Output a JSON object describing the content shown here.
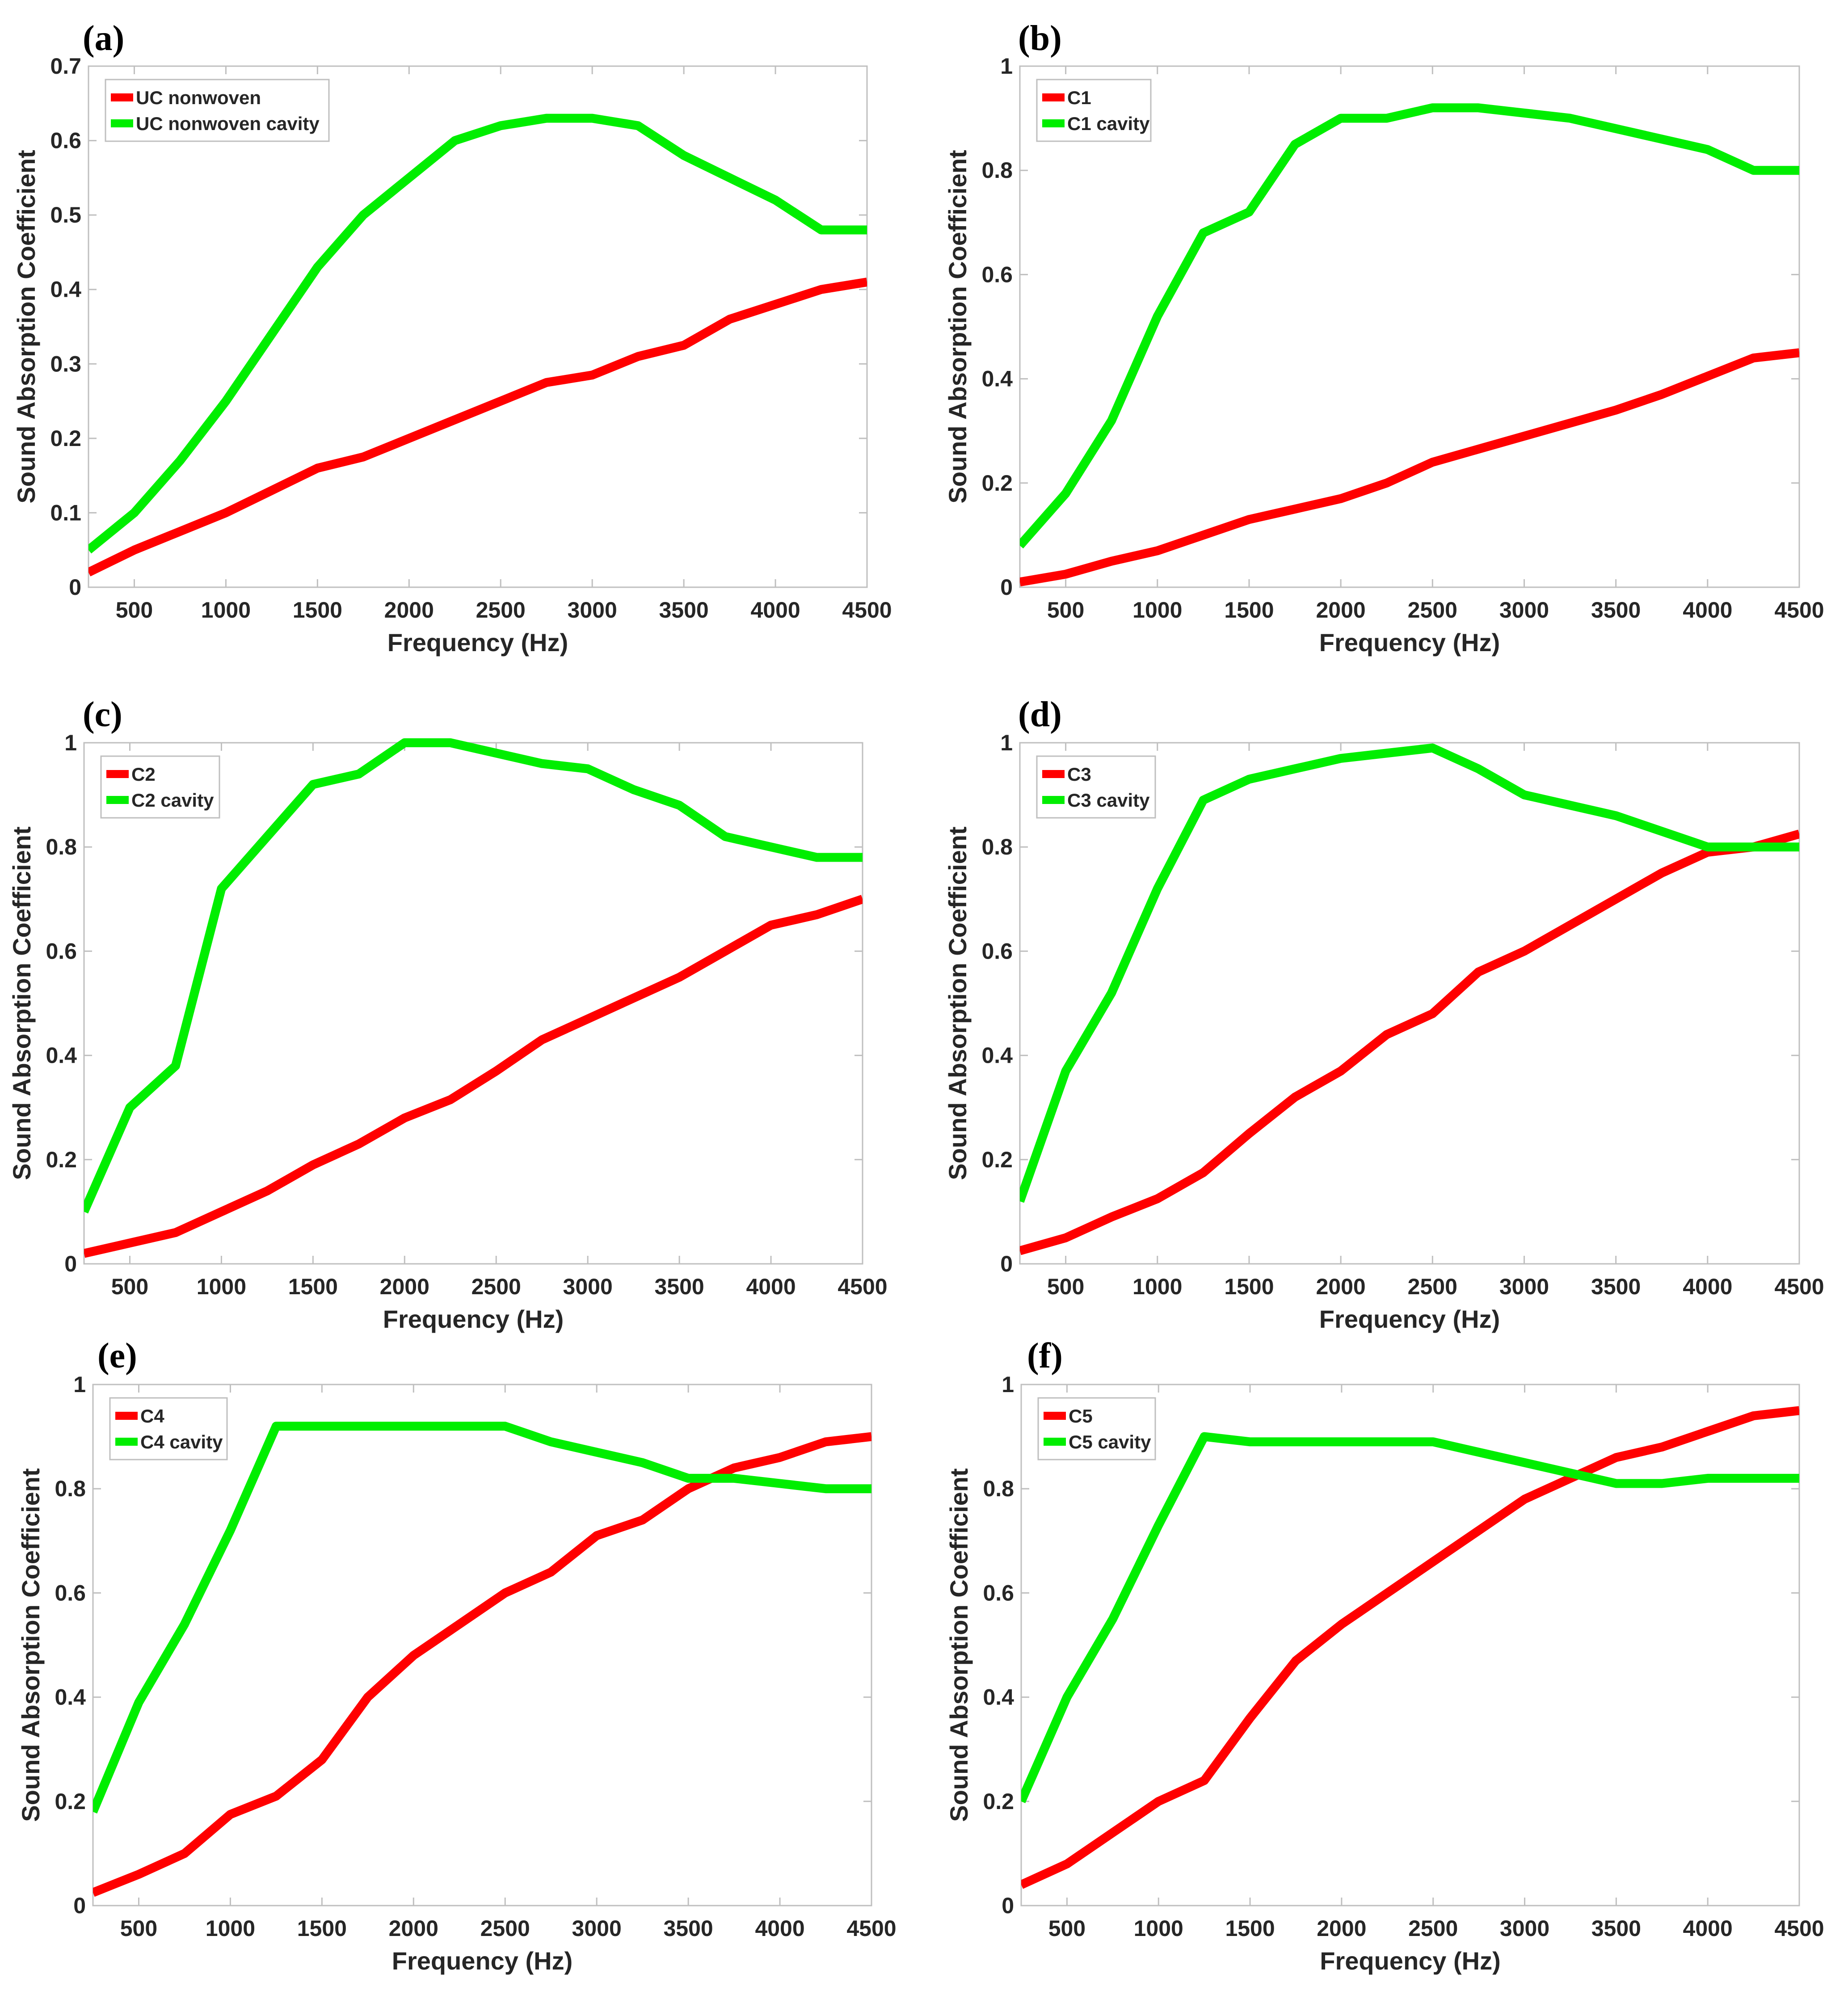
{
  "figure": {
    "colors": {
      "red": "#ff0000",
      "green": "#00ee00",
      "axis": "#bfbfbf",
      "text": "#262626"
    }
  },
  "chart_data": [
    {
      "panel": "(a)",
      "type": "line",
      "xlabel": "Frequency (Hz)",
      "ylabel": "Sound Absorption Coefficient",
      "xlim": [
        250,
        4500
      ],
      "ylim": [
        0,
        0.7
      ],
      "xticks": [
        500,
        1000,
        1500,
        2000,
        2500,
        3000,
        3500,
        4000,
        4500
      ],
      "yticks": [
        0,
        0.1,
        0.2,
        0.3,
        0.4,
        0.5,
        0.6,
        0.7
      ],
      "ytick_labels": [
        "0",
        "0.1",
        "0.2",
        "0.3",
        "0.4",
        "0.5",
        "0.6",
        "0.7"
      ],
      "legend_location": "top-left",
      "x": [
        250,
        500,
        750,
        1000,
        1250,
        1500,
        1750,
        2000,
        2250,
        2500,
        2750,
        3000,
        3250,
        3500,
        3750,
        4000,
        4250,
        4500
      ],
      "series": [
        {
          "name": "UC nonwoven",
          "color": "#ff0000",
          "values": [
            0.02,
            0.05,
            0.075,
            0.1,
            0.13,
            0.16,
            0.175,
            0.2,
            0.225,
            0.25,
            0.275,
            0.285,
            0.31,
            0.325,
            0.36,
            0.38,
            0.4,
            0.41
          ]
        },
        {
          "name": "UC nonwoven cavity",
          "color": "#00ee00",
          "values": [
            0.05,
            0.1,
            0.17,
            0.25,
            0.34,
            0.43,
            0.5,
            0.55,
            0.6,
            0.62,
            0.63,
            0.63,
            0.62,
            0.58,
            0.55,
            0.52,
            0.48,
            0.48
          ]
        }
      ]
    },
    {
      "panel": "(b)",
      "type": "line",
      "xlabel": "Frequency (Hz)",
      "ylabel": "Sound Absorption Coefficient",
      "xlim": [
        250,
        4500
      ],
      "ylim": [
        0,
        1
      ],
      "xticks": [
        500,
        1000,
        1500,
        2000,
        2500,
        3000,
        3500,
        4000,
        4500
      ],
      "yticks": [
        0,
        0.2,
        0.4,
        0.6,
        0.8,
        1
      ],
      "ytick_labels": [
        "0",
        "0.2",
        "0.4",
        "0.6",
        "0.8",
        "1"
      ],
      "legend_location": "top-left",
      "x": [
        250,
        500,
        750,
        1000,
        1250,
        1500,
        1750,
        2000,
        2250,
        2500,
        2750,
        3000,
        3250,
        3500,
        3750,
        4000,
        4250,
        4500
      ],
      "series": [
        {
          "name": "C1",
          "color": "#ff0000",
          "values": [
            0.01,
            0.025,
            0.05,
            0.07,
            0.1,
            0.13,
            0.15,
            0.17,
            0.2,
            0.24,
            0.265,
            0.29,
            0.315,
            0.34,
            0.37,
            0.405,
            0.44,
            0.45
          ]
        },
        {
          "name": "C1 cavity",
          "color": "#00ee00",
          "values": [
            0.08,
            0.18,
            0.32,
            0.52,
            0.68,
            0.72,
            0.85,
            0.9,
            0.9,
            0.92,
            0.92,
            0.91,
            0.9,
            0.88,
            0.86,
            0.84,
            0.8,
            0.8
          ]
        }
      ]
    },
    {
      "panel": "(c)",
      "type": "line",
      "xlabel": "Frequency (Hz)",
      "ylabel": "Sound Absorption Coefficient",
      "xlim": [
        250,
        4500
      ],
      "ylim": [
        0,
        1
      ],
      "xticks": [
        500,
        1000,
        1500,
        2000,
        2500,
        3000,
        3500,
        4000,
        4500
      ],
      "yticks": [
        0,
        0.2,
        0.4,
        0.6,
        0.8,
        1
      ],
      "ytick_labels": [
        "0",
        "0.2",
        "0.4",
        "0.6",
        "0.8",
        "1"
      ],
      "legend_location": "top-left",
      "x": [
        250,
        500,
        750,
        1000,
        1250,
        1500,
        1750,
        2000,
        2250,
        2500,
        2750,
        3000,
        3250,
        3500,
        3750,
        4000,
        4250,
        4500
      ],
      "series": [
        {
          "name": "C2",
          "color": "#ff0000",
          "values": [
            0.02,
            0.04,
            0.06,
            0.1,
            0.14,
            0.19,
            0.23,
            0.28,
            0.315,
            0.37,
            0.43,
            0.47,
            0.51,
            0.55,
            0.6,
            0.65,
            0.67,
            0.7
          ]
        },
        {
          "name": "C2 cavity",
          "color": "#00ee00",
          "values": [
            0.1,
            0.3,
            0.38,
            0.72,
            0.82,
            0.92,
            0.94,
            1.0,
            1.0,
            0.98,
            0.96,
            0.95,
            0.91,
            0.88,
            0.82,
            0.8,
            0.78,
            0.78
          ]
        }
      ]
    },
    {
      "panel": "(d)",
      "type": "line",
      "xlabel": "Frequency (Hz)",
      "ylabel": "Sound Absorption Coefficient",
      "xlim": [
        250,
        4500
      ],
      "ylim": [
        0,
        1
      ],
      "xticks": [
        500,
        1000,
        1500,
        2000,
        2500,
        3000,
        3500,
        4000,
        4500
      ],
      "yticks": [
        0,
        0.2,
        0.4,
        0.6,
        0.8,
        1
      ],
      "ytick_labels": [
        "0",
        "0.2",
        "0.4",
        "0.6",
        "0.8",
        "1"
      ],
      "legend_location": "top-left",
      "x": [
        250,
        500,
        750,
        1000,
        1250,
        1500,
        1750,
        2000,
        2250,
        2500,
        2750,
        3000,
        3250,
        3500,
        3750,
        4000,
        4250,
        4500
      ],
      "series": [
        {
          "name": "C3",
          "color": "#ff0000",
          "values": [
            0.025,
            0.05,
            0.09,
            0.125,
            0.175,
            0.25,
            0.32,
            0.37,
            0.44,
            0.48,
            0.56,
            0.6,
            0.65,
            0.7,
            0.75,
            0.79,
            0.8,
            0.825
          ]
        },
        {
          "name": "C3 cavity",
          "color": "#00ee00",
          "values": [
            0.12,
            0.37,
            0.52,
            0.72,
            0.89,
            0.93,
            0.95,
            0.97,
            0.98,
            0.99,
            0.95,
            0.9,
            0.88,
            0.86,
            0.83,
            0.8,
            0.8,
            0.8
          ]
        }
      ]
    },
    {
      "panel": "(e)",
      "type": "line",
      "xlabel": "Frequency (Hz)",
      "ylabel": "Sound Absorption Coefficient",
      "xlim": [
        250,
        4500
      ],
      "ylim": [
        0,
        1
      ],
      "xticks": [
        500,
        1000,
        1500,
        2000,
        2500,
        3000,
        3500,
        4000,
        4500
      ],
      "yticks": [
        0,
        0.2,
        0.4,
        0.6,
        0.8,
        1
      ],
      "ytick_labels": [
        "0",
        "0.2",
        "0.4",
        "0.6",
        "0.8",
        "1"
      ],
      "legend_location": "top-left",
      "x": [
        250,
        500,
        750,
        1000,
        1250,
        1500,
        1750,
        2000,
        2250,
        2500,
        2750,
        3000,
        3250,
        3500,
        3750,
        4000,
        4250,
        4500
      ],
      "series": [
        {
          "name": "C4",
          "color": "#ff0000",
          "values": [
            0.025,
            0.06,
            0.1,
            0.175,
            0.21,
            0.28,
            0.4,
            0.48,
            0.54,
            0.6,
            0.64,
            0.71,
            0.74,
            0.8,
            0.84,
            0.86,
            0.89,
            0.9
          ]
        },
        {
          "name": "C4 cavity",
          "color": "#00ee00",
          "values": [
            0.18,
            0.39,
            0.54,
            0.72,
            0.92,
            0.92,
            0.92,
            0.92,
            0.92,
            0.92,
            0.89,
            0.87,
            0.85,
            0.82,
            0.82,
            0.81,
            0.8,
            0.8
          ]
        }
      ]
    },
    {
      "panel": "(f)",
      "type": "line",
      "xlabel": "Frequency (Hz)",
      "ylabel": "Sound Absorption Coefficient",
      "xlim": [
        250,
        4500
      ],
      "ylim": [
        0,
        1
      ],
      "xticks": [
        500,
        1000,
        1500,
        2000,
        2500,
        3000,
        3500,
        4000,
        4500
      ],
      "yticks": [
        0,
        0.2,
        0.4,
        0.6,
        0.8,
        1
      ],
      "ytick_labels": [
        "0",
        "0.2",
        "0.4",
        "0.6",
        "0.8",
        "1"
      ],
      "legend_location": "top-left",
      "x": [
        250,
        500,
        750,
        1000,
        1250,
        1500,
        1750,
        2000,
        2250,
        2500,
        2750,
        3000,
        3250,
        3500,
        3750,
        4000,
        4250,
        4500
      ],
      "series": [
        {
          "name": "C5",
          "color": "#ff0000",
          "values": [
            0.04,
            0.08,
            0.14,
            0.2,
            0.24,
            0.36,
            0.47,
            0.54,
            0.6,
            0.66,
            0.72,
            0.78,
            0.82,
            0.86,
            0.88,
            0.91,
            0.94,
            0.95
          ]
        },
        {
          "name": "C5 cavity",
          "color": "#00ee00",
          "values": [
            0.2,
            0.4,
            0.55,
            0.73,
            0.9,
            0.89,
            0.89,
            0.89,
            0.89,
            0.89,
            0.87,
            0.85,
            0.83,
            0.81,
            0.81,
            0.82,
            0.82,
            0.82
          ]
        }
      ]
    }
  ]
}
